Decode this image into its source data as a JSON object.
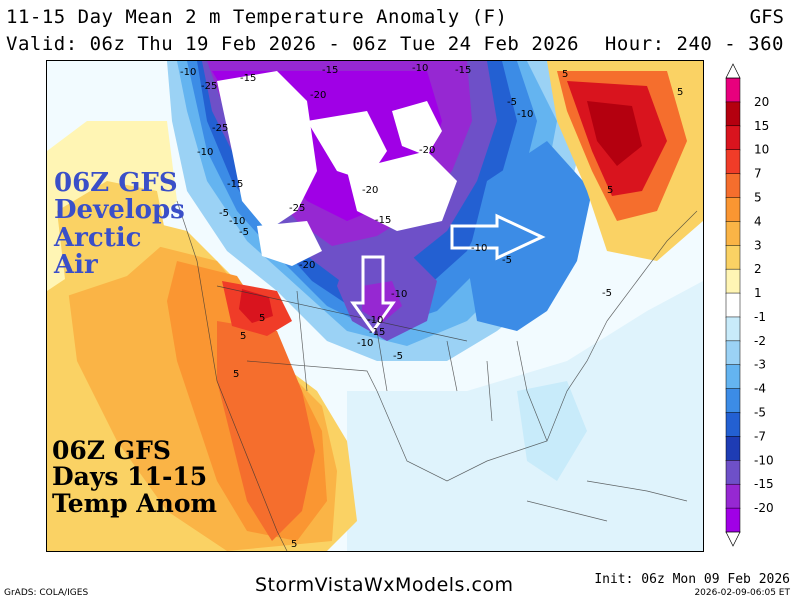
{
  "header": {
    "title": "11-15 Day Mean 2 m Temperature Anomaly (F)",
    "model": "GFS",
    "valid": "Valid: 06z Thu 19 Feb 2026 - 06z Tue 24 Feb 2026",
    "hours": "Hour: 240 - 360"
  },
  "annotations": {
    "arctic": [
      "06Z GFS",
      "Develops",
      "Arctic",
      "Air"
    ],
    "summary": [
      "06Z GFS",
      "Days 11-15",
      "Temp Anom"
    ]
  },
  "colorbar": {
    "levels": [
      "20",
      "15",
      "10",
      "7",
      "5",
      "4",
      "3",
      "2",
      "1",
      "-1",
      "-2",
      "-3",
      "-4",
      "-5",
      "-7",
      "-10",
      "-15",
      "-20"
    ],
    "colors": [
      "#e8007d",
      "#b4000f",
      "#d9141e",
      "#f03c28",
      "#f56e2d",
      "#fa9632",
      "#fab446",
      "#fad264",
      "#fff5b4",
      "#ffffff",
      "#c8ebfa",
      "#9bd2f5",
      "#64b4f0",
      "#3c8ce6",
      "#2360d2",
      "#1e3cb4",
      "#6e50c8",
      "#9628d2",
      "#a000e6"
    ]
  },
  "map_labels": [
    "-10",
    "-25",
    "-15",
    "-15",
    "-20",
    "-10",
    "-15",
    "-25",
    "-5",
    "-10",
    "-20",
    "-25",
    "-20",
    "-15",
    "-15",
    "-10",
    "-5",
    "-20",
    "-10",
    "-5",
    "-10",
    "-5",
    "5",
    "5",
    "5",
    "5",
    "5",
    "5",
    "-5",
    "-5",
    "5",
    "-10",
    "-10",
    "-15",
    "-10"
  ],
  "footer": {
    "grads": "GrADS: COLA/IGES",
    "site": "StormVistaWxModels.com",
    "init": "Init: 06z Mon 09 Feb 2026",
    "timestamp": "2026-02-09-06:05 ET"
  }
}
